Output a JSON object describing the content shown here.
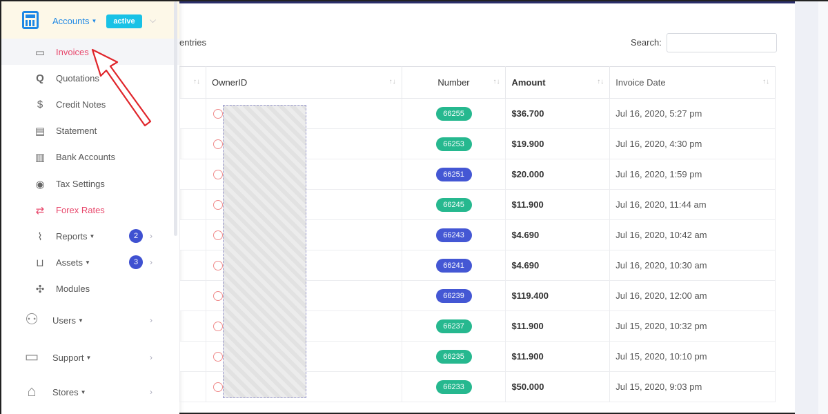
{
  "sidebar": {
    "accounts": {
      "label": "Accounts",
      "badge": "active",
      "icon": "calculator-icon"
    },
    "sub_items": [
      {
        "label": "Invoices",
        "icon": "invoice-icon",
        "active": true
      },
      {
        "label": "Quotations",
        "icon": "quotation-icon"
      },
      {
        "label": "Credit Notes",
        "icon": "credit-note-icon"
      },
      {
        "label": "Statement",
        "icon": "statement-icon"
      },
      {
        "label": "Bank Accounts",
        "icon": "bank-icon"
      },
      {
        "label": "Tax Settings",
        "icon": "tax-icon"
      },
      {
        "label": "Forex Rates",
        "icon": "exchange-icon"
      },
      {
        "label": "Reports",
        "icon": "chart-icon",
        "count": "2"
      },
      {
        "label": "Assets",
        "icon": "basket-icon",
        "count": "3"
      },
      {
        "label": "Modules",
        "icon": "puzzle-icon"
      }
    ],
    "main_items": [
      {
        "label": "Users",
        "icon": "user-icon"
      },
      {
        "label": "Support",
        "icon": "chat-icon"
      },
      {
        "label": "Stores",
        "icon": "store-icon"
      }
    ]
  },
  "toolbar": {
    "entries_text": "entries",
    "search_label": "Search:",
    "search_value": ""
  },
  "table": {
    "headers": [
      "",
      "OwnerID",
      "Number",
      "Amount",
      "Invoice Date"
    ],
    "rows": [
      {
        "number": "66255",
        "amount": "$36.700",
        "date": "Jul 16, 2020, 5:27 pm",
        "status": "green"
      },
      {
        "number": "66253",
        "amount": "$19.900",
        "date": "Jul 16, 2020, 4:30 pm",
        "status": "green"
      },
      {
        "number": "66251",
        "amount": "$20.000",
        "date": "Jul 16, 2020, 1:59 pm",
        "status": "blue"
      },
      {
        "number": "66245",
        "amount": "$11.900",
        "date": "Jul 16, 2020, 11:44 am",
        "status": "green"
      },
      {
        "number": "66243",
        "amount": "$4.690",
        "date": "Jul 16, 2020, 10:42 am",
        "status": "blue"
      },
      {
        "number": "66241",
        "amount": "$4.690",
        "date": "Jul 16, 2020, 10:30 am",
        "status": "blue"
      },
      {
        "number": "66239",
        "amount": "$119.400",
        "date": "Jul 16, 2020, 12:00 am",
        "status": "blue"
      },
      {
        "number": "66237",
        "amount": "$11.900",
        "date": "Jul 15, 2020, 10:32 pm",
        "status": "green"
      },
      {
        "number": "66235",
        "amount": "$11.900",
        "date": "Jul 15, 2020, 10:10 pm",
        "status": "green"
      },
      {
        "number": "66233",
        "amount": "$50.000",
        "date": "Jul 15, 2020, 9:03 pm",
        "status": "green"
      }
    ]
  },
  "colors": {
    "green": "#26b88f",
    "blue": "#4457d4",
    "accent": "#1e88e5",
    "pink": "#e8486c"
  }
}
